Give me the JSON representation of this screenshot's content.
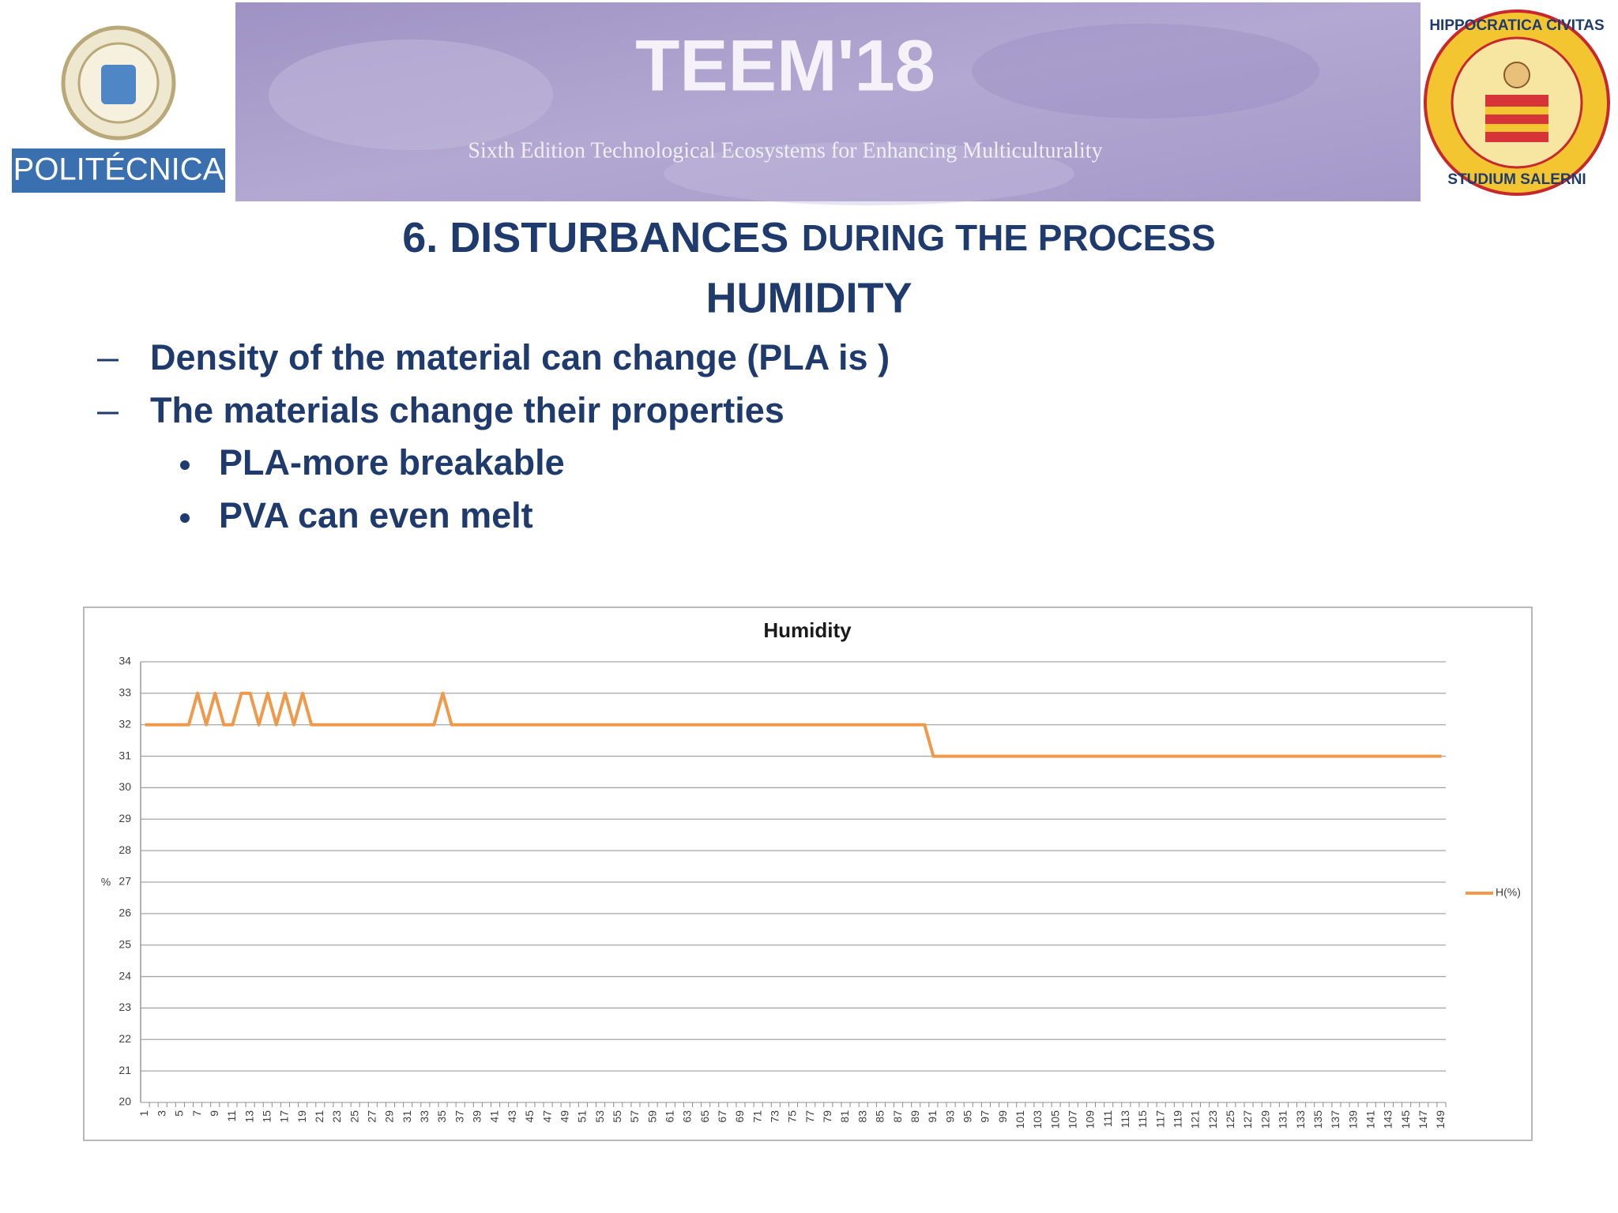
{
  "header": {
    "title": "TEEM'18",
    "subtitle": "Sixth Edition Technological Ecosystems for Enhancing Multiculturality"
  },
  "logos": {
    "left": "POLITÉCNICA",
    "right_top": "HIPPOCRATICA CIVITAS",
    "right_bottom": "STUDIUM SALERNI"
  },
  "heading": {
    "part1": "6. DISTURBANCES",
    "part2": "DURING THE PROCESS",
    "line2": "HUMIDITY"
  },
  "bullets": [
    "Density of the material can change (PLA is )",
    "The materials change their properties"
  ],
  "sub_bullets": [
    "PLA-more breakable",
    "PVA can even melt"
  ],
  "chart_data": {
    "type": "line",
    "title": "Humidity",
    "y_label": "%",
    "categories": [
      1,
      null,
      3,
      null,
      5,
      null,
      7,
      null,
      9,
      null,
      11,
      null,
      13,
      null,
      15,
      null,
      17,
      null,
      19,
      null,
      21,
      null,
      23,
      null,
      25,
      null,
      27,
      null,
      29,
      null,
      31,
      null,
      33,
      null,
      35,
      null,
      37,
      null,
      39,
      null,
      41,
      null,
      43,
      null,
      45,
      null,
      47,
      null,
      49,
      null,
      51,
      null,
      53,
      null,
      55,
      null,
      57,
      null,
      59,
      null,
      61,
      null,
      63,
      null,
      65,
      null,
      67,
      null,
      69,
      null,
      71,
      null,
      73,
      null,
      75,
      null,
      77,
      null,
      79,
      null,
      81,
      null,
      83,
      null,
      85,
      null,
      87,
      null,
      89,
      null,
      91,
      null,
      93,
      null,
      95,
      null,
      97,
      null,
      99,
      null,
      101,
      null,
      103,
      null,
      105,
      null,
      107,
      null,
      109,
      null,
      111,
      null,
      113,
      null,
      115,
      null,
      117,
      null,
      119,
      null,
      121,
      null,
      123,
      null,
      125,
      null,
      127,
      null,
      129,
      null,
      131,
      null,
      133,
      null,
      135,
      null,
      137,
      null,
      139,
      null,
      141,
      null,
      143,
      null,
      145,
      null,
      147,
      null,
      149
    ],
    "series": [
      {
        "name": "H(%)",
        "color": "#ef9a4a",
        "values": [
          32,
          32,
          32,
          32,
          32,
          32,
          33,
          32,
          33,
          32,
          32,
          33,
          33,
          32,
          33,
          32,
          33,
          32,
          33,
          32,
          32,
          32,
          32,
          32,
          32,
          32,
          32,
          32,
          32,
          32,
          32,
          32,
          32,
          32,
          33,
          32,
          32,
          32,
          32,
          32,
          32,
          32,
          32,
          32,
          32,
          32,
          32,
          32,
          32,
          32,
          32,
          32,
          32,
          32,
          32,
          32,
          32,
          32,
          32,
          32,
          32,
          32,
          32,
          32,
          32,
          32,
          32,
          32,
          32,
          32,
          32,
          32,
          32,
          32,
          32,
          32,
          32,
          32,
          32,
          32,
          32,
          32,
          32,
          32,
          32,
          32,
          32,
          32,
          32,
          32,
          31,
          31,
          31,
          31,
          31,
          31,
          31,
          31,
          31,
          31,
          31,
          31,
          31,
          31,
          31,
          31,
          31,
          31,
          31,
          31,
          31,
          31,
          31,
          31,
          31,
          31,
          31,
          31,
          31,
          31,
          31,
          31,
          31,
          31,
          31,
          31,
          31,
          31,
          31,
          31,
          31,
          31,
          31,
          31,
          31,
          31,
          31,
          31,
          31,
          31,
          31,
          31,
          31,
          31,
          31,
          31,
          31,
          31,
          31
        ]
      }
    ],
    "ylim": [
      20,
      34
    ],
    "yticks": [
      20,
      21,
      22,
      23,
      24,
      25,
      26,
      27,
      28,
      29,
      30,
      31,
      32,
      33,
      34
    ],
    "grid": true,
    "legend": "right"
  }
}
